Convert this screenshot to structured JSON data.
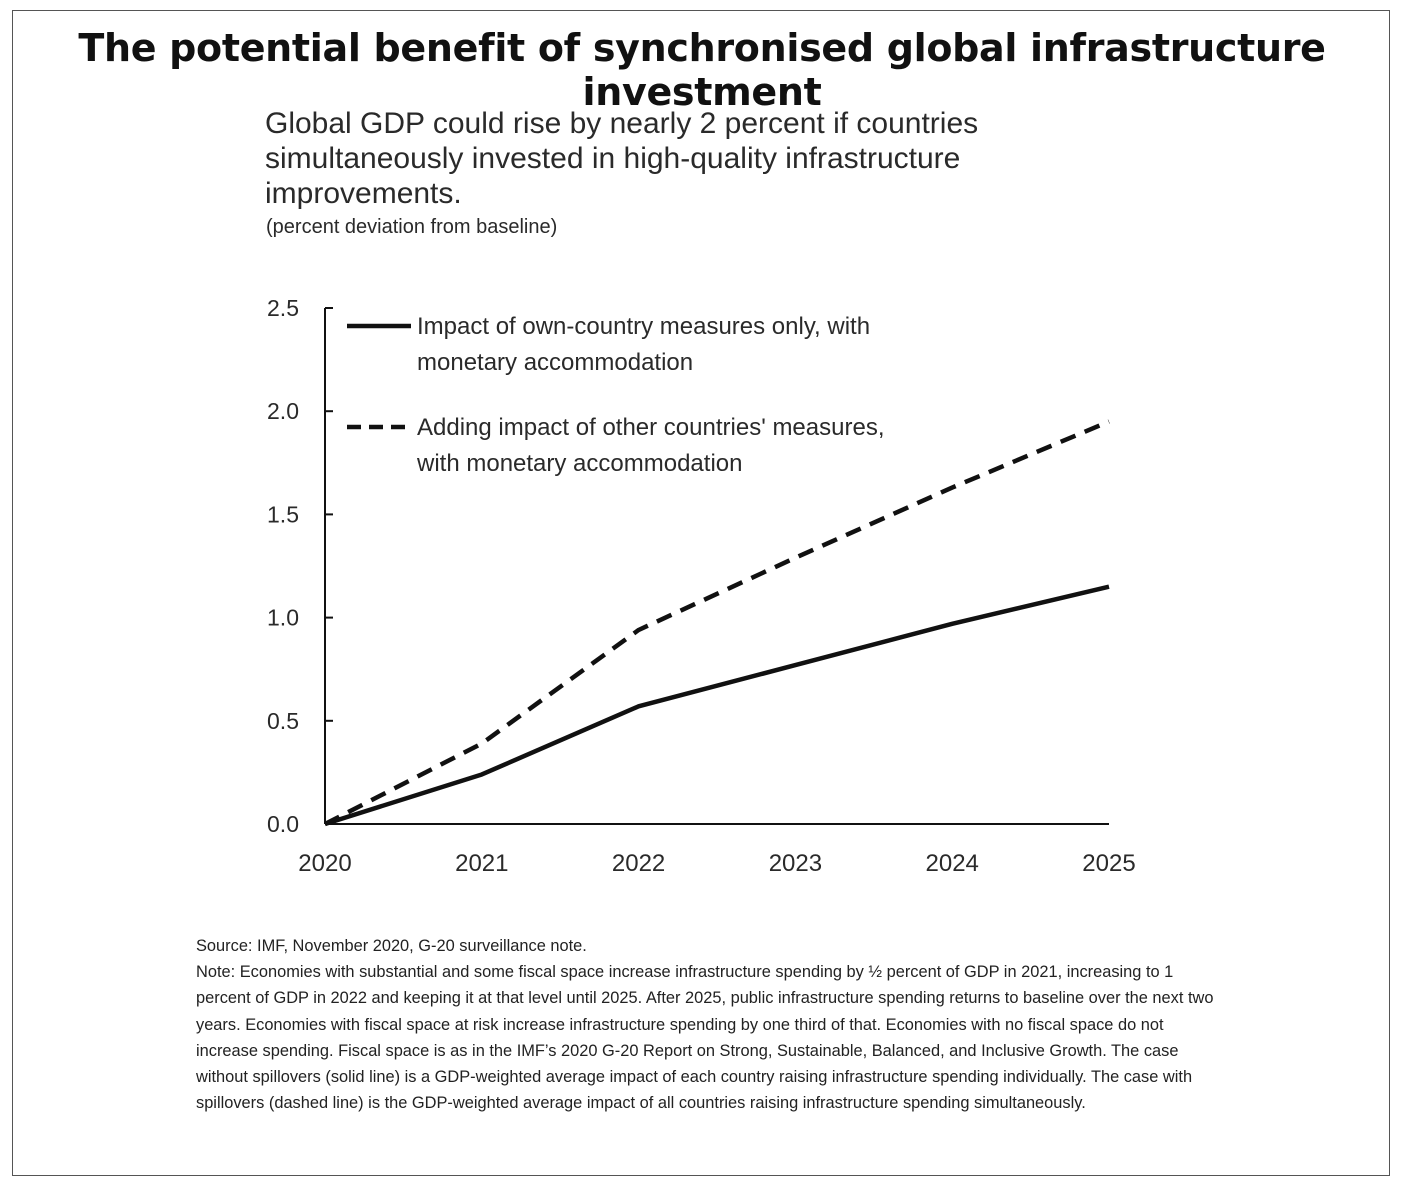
{
  "page": {
    "title": "The potential benefit of synchronised global infrastructure investment"
  },
  "chart_data": {
    "type": "line",
    "title": "Global GDP could rise by nearly 2 percent if countries simultaneously invested in high-quality infrastructure improvements.",
    "units": "(percent deviation from baseline)",
    "x": [
      "2020",
      "2021",
      "2022",
      "2023",
      "2024",
      "2025"
    ],
    "ylim": [
      0,
      2.5
    ],
    "yticks": [
      "0.0",
      "0.5",
      "1.0",
      "1.5",
      "2.0",
      "2.5"
    ],
    "xlabel": "",
    "ylabel": "",
    "grid": false,
    "legend_position": "top-left",
    "series": [
      {
        "name": "Impact of own-country measures only, with monetary accommodation",
        "name_lines": [
          "Impact of own-country measures only, with",
          "monetary accommodation"
        ],
        "style": "solid",
        "values": [
          0.0,
          0.24,
          0.57,
          0.77,
          0.97,
          1.15
        ]
      },
      {
        "name": "Adding impact of other countries' measures, with monetary accommodation",
        "name_lines": [
          "Adding impact of other countries' measures,",
          "with monetary accommodation"
        ],
        "style": "dashed",
        "values": [
          0.0,
          0.39,
          0.94,
          1.29,
          1.63,
          1.95
        ]
      }
    ]
  },
  "notes": {
    "source": "Source: IMF, November 2020, G-20 surveillance note.",
    "note": "Note: Economies with substantial and some fiscal space increase infrastructure spending by ½ percent of GDP in 2021, increasing to 1 percent of GDP in 2022 and keeping it at that level until 2025. After 2025, public infrastructure spending returns to baseline over the next two years. Economies with fiscal space at risk increase infrastructure spending by one third of that. Economies with no fiscal space do not increase spending. Fiscal space is as in the IMF’s 2020 G-20 Report on Strong, Sustainable, Balanced, and Inclusive Growth. The case without spillovers (solid line) is a GDP-weighted average impact of each country raising infrastructure spending individually. The case with spillovers (dashed line) is the GDP-weighted average impact of all countries raising infrastructure spending simultaneously."
  },
  "colors": {
    "line": "#111111",
    "text": "#2a2a2a"
  }
}
